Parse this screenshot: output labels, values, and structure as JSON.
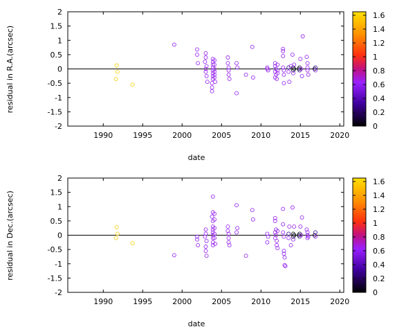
{
  "chart_data": [
    {
      "type": "scatter",
      "xlabel": "date",
      "ylabel": "residual in R.A.(arcsec)",
      "xlim": [
        1985.5,
        2020.5
      ],
      "ylim": [
        -2,
        2
      ],
      "xticks": [
        "1990",
        "1995",
        "2000",
        "2005",
        "2010",
        "2015",
        "2020"
      ],
      "yticks": [
        "-2",
        "-1.5",
        "-1",
        "-0.5",
        "0",
        "0.5",
        "1",
        "1.5",
        "2"
      ],
      "colorbar": {
        "ticks": [
          "0",
          "0.2",
          "0.4",
          "0.6",
          "0.8",
          "1",
          "1.2",
          "1.4",
          "1.6"
        ],
        "range": [
          0,
          1.65
        ]
      },
      "zero_line": 0,
      "points": [
        {
          "x": 1991.7,
          "y": 0.12,
          "c": 1.45
        },
        {
          "x": 1991.8,
          "y": -0.1,
          "c": 1.45
        },
        {
          "x": 1991.6,
          "y": -0.35,
          "c": 1.45
        },
        {
          "x": 1993.7,
          "y": -0.55,
          "c": 1.45
        },
        {
          "x": 1999.0,
          "y": 0.85,
          "c": 0.6
        },
        {
          "x": 2001.9,
          "y": 0.68,
          "c": 0.6
        },
        {
          "x": 2001.9,
          "y": 0.5,
          "c": 0.6
        },
        {
          "x": 2002.0,
          "y": 0.2,
          "c": 0.6
        },
        {
          "x": 2003.0,
          "y": 0.55,
          "c": 0.6
        },
        {
          "x": 2003.0,
          "y": 0.4,
          "c": 0.6
        },
        {
          "x": 2002.9,
          "y": 0.25,
          "c": 0.6
        },
        {
          "x": 2003.1,
          "y": 0.1,
          "c": 0.6
        },
        {
          "x": 2003.0,
          "y": 0.0,
          "c": 0.6
        },
        {
          "x": 2003.0,
          "y": -0.1,
          "c": 0.6
        },
        {
          "x": 2003.1,
          "y": -0.25,
          "c": 0.6
        },
        {
          "x": 2003.2,
          "y": -0.45,
          "c": 0.6
        },
        {
          "x": 2003.9,
          "y": 0.35,
          "c": 0.6
        },
        {
          "x": 2003.9,
          "y": 0.25,
          "c": 0.6
        },
        {
          "x": 2003.9,
          "y": 0.15,
          "c": 0.6
        },
        {
          "x": 2003.9,
          "y": 0.05,
          "c": 0.6
        },
        {
          "x": 2003.9,
          "y": -0.05,
          "c": 0.6
        },
        {
          "x": 2003.9,
          "y": -0.15,
          "c": 0.6
        },
        {
          "x": 2003.9,
          "y": -0.25,
          "c": 0.6
        },
        {
          "x": 2003.9,
          "y": -0.35,
          "c": 0.6
        },
        {
          "x": 2003.8,
          "y": -0.5,
          "c": 0.6
        },
        {
          "x": 2003.8,
          "y": -0.65,
          "c": 0.6
        },
        {
          "x": 2003.8,
          "y": -0.78,
          "c": 0.6
        },
        {
          "x": 2004.1,
          "y": 0.3,
          "c": 0.6
        },
        {
          "x": 2004.1,
          "y": 0.15,
          "c": 0.6
        },
        {
          "x": 2004.1,
          "y": 0.0,
          "c": 0.6
        },
        {
          "x": 2004.1,
          "y": -0.1,
          "c": 0.6
        },
        {
          "x": 2004.1,
          "y": -0.2,
          "c": 0.6
        },
        {
          "x": 2004.1,
          "y": -0.3,
          "c": 0.6
        },
        {
          "x": 2004.2,
          "y": -0.45,
          "c": 0.6
        },
        {
          "x": 2005.8,
          "y": 0.4,
          "c": 0.6
        },
        {
          "x": 2005.8,
          "y": 0.2,
          "c": 0.6
        },
        {
          "x": 2005.9,
          "y": 0.05,
          "c": 0.6
        },
        {
          "x": 2005.9,
          "y": -0.05,
          "c": 0.6
        },
        {
          "x": 2005.9,
          "y": -0.2,
          "c": 0.6
        },
        {
          "x": 2006.0,
          "y": -0.35,
          "c": 0.6
        },
        {
          "x": 2006.9,
          "y": 0.2,
          "c": 0.6
        },
        {
          "x": 2007.0,
          "y": 0.05,
          "c": 0.6
        },
        {
          "x": 2006.9,
          "y": -0.85,
          "c": 0.6
        },
        {
          "x": 2008.1,
          "y": -0.2,
          "c": 0.6
        },
        {
          "x": 2008.9,
          "y": 0.77,
          "c": 0.6
        },
        {
          "x": 2009.0,
          "y": -0.3,
          "c": 0.6
        },
        {
          "x": 2010.8,
          "y": 0.0,
          "c": 0.6
        },
        {
          "x": 2010.9,
          "y": -0.05,
          "c": 0.6
        },
        {
          "x": 2010.8,
          "y": 0.05,
          "c": 0.6
        },
        {
          "x": 2011.8,
          "y": 0.2,
          "c": 0.6
        },
        {
          "x": 2011.8,
          "y": 0.1,
          "c": 0.6
        },
        {
          "x": 2011.9,
          "y": 0.0,
          "c": 0.6
        },
        {
          "x": 2011.8,
          "y": -0.1,
          "c": 0.6
        },
        {
          "x": 2011.9,
          "y": -0.2,
          "c": 0.6
        },
        {
          "x": 2011.8,
          "y": -0.3,
          "c": 0.6
        },
        {
          "x": 2012.0,
          "y": -0.35,
          "c": 0.6
        },
        {
          "x": 2012.1,
          "y": 0.15,
          "c": 0.6
        },
        {
          "x": 2012.1,
          "y": -0.05,
          "c": 0.6
        },
        {
          "x": 2012.1,
          "y": -0.15,
          "c": 0.6
        },
        {
          "x": 2012.8,
          "y": 0.7,
          "c": 0.6
        },
        {
          "x": 2012.8,
          "y": 0.62,
          "c": 0.6
        },
        {
          "x": 2012.8,
          "y": 0.45,
          "c": 0.6
        },
        {
          "x": 2012.8,
          "y": 0.05,
          "c": 0.6
        },
        {
          "x": 2012.9,
          "y": -0.05,
          "c": 0.6
        },
        {
          "x": 2012.9,
          "y": -0.2,
          "c": 0.6
        },
        {
          "x": 2012.9,
          "y": -0.5,
          "c": 0.6
        },
        {
          "x": 2013.5,
          "y": 0.05,
          "c": 0.3
        },
        {
          "x": 2013.5,
          "y": -0.1,
          "c": 0.5
        },
        {
          "x": 2013.6,
          "y": -0.45,
          "c": 0.6
        },
        {
          "x": 2013.8,
          "y": 0.1,
          "c": 0.6
        },
        {
          "x": 2014.0,
          "y": 0.5,
          "c": 0.6
        },
        {
          "x": 2014.1,
          "y": 0.05,
          "c": 0.15
        },
        {
          "x": 2014.1,
          "y": -0.05,
          "c": 0.1
        },
        {
          "x": 2014.2,
          "y": 0.0,
          "c": 0.2
        },
        {
          "x": 2014.1,
          "y": -0.15,
          "c": 0.6
        },
        {
          "x": 2014.2,
          "y": 0.15,
          "c": 0.6
        },
        {
          "x": 2014.8,
          "y": 0.0,
          "c": 0.1
        },
        {
          "x": 2014.9,
          "y": 0.05,
          "c": 0.2
        },
        {
          "x": 2014.9,
          "y": -0.05,
          "c": 0.3
        },
        {
          "x": 2015.0,
          "y": 0.35,
          "c": 0.6
        },
        {
          "x": 2015.1,
          "y": 0.0,
          "c": 0.6
        },
        {
          "x": 2015.2,
          "y": -0.25,
          "c": 0.6
        },
        {
          "x": 2015.3,
          "y": 1.14,
          "c": 0.6
        },
        {
          "x": 2015.8,
          "y": 0.42,
          "c": 0.6
        },
        {
          "x": 2015.9,
          "y": 0.2,
          "c": 0.6
        },
        {
          "x": 2015.9,
          "y": 0.05,
          "c": 0.6
        },
        {
          "x": 2015.9,
          "y": -0.05,
          "c": 0.6
        },
        {
          "x": 2016.0,
          "y": -0.2,
          "c": 0.6
        },
        {
          "x": 2016.8,
          "y": 0.0,
          "c": 0.2
        },
        {
          "x": 2016.9,
          "y": -0.05,
          "c": 0.6
        },
        {
          "x": 2016.9,
          "y": 0.05,
          "c": 0.4
        }
      ]
    },
    {
      "type": "scatter",
      "xlabel": "date",
      "ylabel": "residual in Dec.(arcsec)",
      "xlim": [
        1985.5,
        2020.5
      ],
      "ylim": [
        -2,
        2
      ],
      "xticks": [
        "1990",
        "1995",
        "2000",
        "2005",
        "2010",
        "2015",
        "2020"
      ],
      "yticks": [
        "-2",
        "-1.5",
        "-1",
        "-0.5",
        "0",
        "0.5",
        "1",
        "1.5",
        "2"
      ],
      "colorbar": {
        "ticks": [
          "0",
          "0.2",
          "0.4",
          "0.6",
          "0.8",
          "1",
          "1.2",
          "1.4",
          "1.6"
        ],
        "range": [
          0,
          1.65
        ]
      },
      "zero_line": 0,
      "points": [
        {
          "x": 1991.7,
          "y": 0.28,
          "c": 1.45
        },
        {
          "x": 1991.8,
          "y": 0.05,
          "c": 1.45
        },
        {
          "x": 1991.6,
          "y": -0.1,
          "c": 1.45
        },
        {
          "x": 1993.7,
          "y": -0.28,
          "c": 1.45
        },
        {
          "x": 1999.0,
          "y": -0.7,
          "c": 0.6
        },
        {
          "x": 2001.9,
          "y": -0.05,
          "c": 0.6
        },
        {
          "x": 2001.9,
          "y": -0.15,
          "c": 0.6
        },
        {
          "x": 2002.0,
          "y": -0.35,
          "c": 0.6
        },
        {
          "x": 2003.0,
          "y": 0.2,
          "c": 0.6
        },
        {
          "x": 2003.0,
          "y": 0.05,
          "c": 0.6
        },
        {
          "x": 2002.9,
          "y": -0.05,
          "c": 0.6
        },
        {
          "x": 2003.1,
          "y": -0.2,
          "c": 0.6
        },
        {
          "x": 2003.0,
          "y": -0.4,
          "c": 0.6
        },
        {
          "x": 2003.0,
          "y": -0.55,
          "c": 0.6
        },
        {
          "x": 2003.1,
          "y": -0.72,
          "c": 0.6
        },
        {
          "x": 2003.9,
          "y": 1.35,
          "c": 0.6
        },
        {
          "x": 2003.9,
          "y": 0.8,
          "c": 0.6
        },
        {
          "x": 2003.8,
          "y": 0.65,
          "c": 0.6
        },
        {
          "x": 2003.9,
          "y": 0.5,
          "c": 0.6
        },
        {
          "x": 2003.9,
          "y": 0.3,
          "c": 0.6
        },
        {
          "x": 2003.9,
          "y": 0.2,
          "c": 0.6
        },
        {
          "x": 2003.9,
          "y": 0.1,
          "c": 0.6
        },
        {
          "x": 2003.9,
          "y": 0.0,
          "c": 0.6
        },
        {
          "x": 2003.9,
          "y": -0.1,
          "c": 0.6
        },
        {
          "x": 2003.9,
          "y": -0.25,
          "c": 0.6
        },
        {
          "x": 2003.9,
          "y": -0.35,
          "c": 0.6
        },
        {
          "x": 2004.1,
          "y": 0.75,
          "c": 0.6
        },
        {
          "x": 2004.1,
          "y": 0.55,
          "c": 0.6
        },
        {
          "x": 2004.1,
          "y": 0.25,
          "c": 0.6
        },
        {
          "x": 2004.1,
          "y": 0.05,
          "c": 0.6
        },
        {
          "x": 2004.1,
          "y": -0.1,
          "c": 0.6
        },
        {
          "x": 2004.2,
          "y": -0.3,
          "c": 0.6
        },
        {
          "x": 2005.8,
          "y": 0.3,
          "c": 0.6
        },
        {
          "x": 2005.8,
          "y": 0.15,
          "c": 0.6
        },
        {
          "x": 2005.9,
          "y": 0.05,
          "c": 0.6
        },
        {
          "x": 2005.9,
          "y": -0.1,
          "c": 0.6
        },
        {
          "x": 2005.9,
          "y": -0.25,
          "c": 0.6
        },
        {
          "x": 2006.0,
          "y": -0.35,
          "c": 0.6
        },
        {
          "x": 2006.9,
          "y": 1.05,
          "c": 0.6
        },
        {
          "x": 2007.0,
          "y": 0.25,
          "c": 0.6
        },
        {
          "x": 2006.9,
          "y": 0.1,
          "c": 0.6
        },
        {
          "x": 2008.1,
          "y": -0.72,
          "c": 0.6
        },
        {
          "x": 2008.9,
          "y": 0.88,
          "c": 0.6
        },
        {
          "x": 2009.0,
          "y": 0.55,
          "c": 0.6
        },
        {
          "x": 2010.8,
          "y": 0.05,
          "c": 0.6
        },
        {
          "x": 2010.9,
          "y": -0.05,
          "c": 0.6
        },
        {
          "x": 2010.8,
          "y": -0.25,
          "c": 0.6
        },
        {
          "x": 2011.8,
          "y": 0.6,
          "c": 0.6
        },
        {
          "x": 2011.8,
          "y": 0.5,
          "c": 0.6
        },
        {
          "x": 2011.9,
          "y": 0.2,
          "c": 0.6
        },
        {
          "x": 2011.8,
          "y": 0.1,
          "c": 0.6
        },
        {
          "x": 2011.9,
          "y": 0.0,
          "c": 0.6
        },
        {
          "x": 2011.8,
          "y": -0.1,
          "c": 0.6
        },
        {
          "x": 2012.0,
          "y": -0.2,
          "c": 0.6
        },
        {
          "x": 2012.0,
          "y": -0.35,
          "c": 0.6
        },
        {
          "x": 2012.1,
          "y": 0.15,
          "c": 0.6
        },
        {
          "x": 2012.1,
          "y": -0.45,
          "c": 0.6
        },
        {
          "x": 2012.8,
          "y": 0.92,
          "c": 0.6
        },
        {
          "x": 2012.8,
          "y": 0.38,
          "c": 0.6
        },
        {
          "x": 2012.8,
          "y": 0.1,
          "c": 0.6
        },
        {
          "x": 2012.9,
          "y": -0.05,
          "c": 0.6
        },
        {
          "x": 2012.9,
          "y": -0.55,
          "c": 0.6
        },
        {
          "x": 2012.9,
          "y": -0.65,
          "c": 0.6
        },
        {
          "x": 2013.0,
          "y": -0.78,
          "c": 0.6
        },
        {
          "x": 2013.0,
          "y": -1.05,
          "c": 0.6
        },
        {
          "x": 2013.1,
          "y": -1.08,
          "c": 0.6
        },
        {
          "x": 2013.5,
          "y": 0.05,
          "c": 0.3
        },
        {
          "x": 2013.5,
          "y": -0.1,
          "c": 0.5
        },
        {
          "x": 2013.6,
          "y": 0.3,
          "c": 0.6
        },
        {
          "x": 2013.8,
          "y": -0.35,
          "c": 0.6
        },
        {
          "x": 2014.0,
          "y": 0.97,
          "c": 0.6
        },
        {
          "x": 2014.1,
          "y": 0.05,
          "c": 0.15
        },
        {
          "x": 2014.1,
          "y": -0.05,
          "c": 0.1
        },
        {
          "x": 2014.2,
          "y": 0.0,
          "c": 0.2
        },
        {
          "x": 2014.1,
          "y": -0.15,
          "c": 0.6
        },
        {
          "x": 2014.2,
          "y": 0.3,
          "c": 0.6
        },
        {
          "x": 2014.8,
          "y": 0.0,
          "c": 0.1
        },
        {
          "x": 2014.9,
          "y": 0.05,
          "c": 0.2
        },
        {
          "x": 2014.9,
          "y": -0.05,
          "c": 0.3
        },
        {
          "x": 2015.0,
          "y": 0.3,
          "c": 0.6
        },
        {
          "x": 2015.1,
          "y": 0.0,
          "c": 0.6
        },
        {
          "x": 2015.2,
          "y": 0.62,
          "c": 0.6
        },
        {
          "x": 2015.8,
          "y": 0.2,
          "c": 0.6
        },
        {
          "x": 2015.9,
          "y": 0.1,
          "c": 0.6
        },
        {
          "x": 2015.9,
          "y": 0.0,
          "c": 0.6
        },
        {
          "x": 2015.9,
          "y": -0.1,
          "c": 0.6
        },
        {
          "x": 2016.0,
          "y": -0.05,
          "c": 0.6
        },
        {
          "x": 2016.8,
          "y": 0.0,
          "c": 0.2
        },
        {
          "x": 2016.9,
          "y": -0.05,
          "c": 0.6
        },
        {
          "x": 2016.9,
          "y": 0.1,
          "c": 0.4
        }
      ]
    }
  ]
}
